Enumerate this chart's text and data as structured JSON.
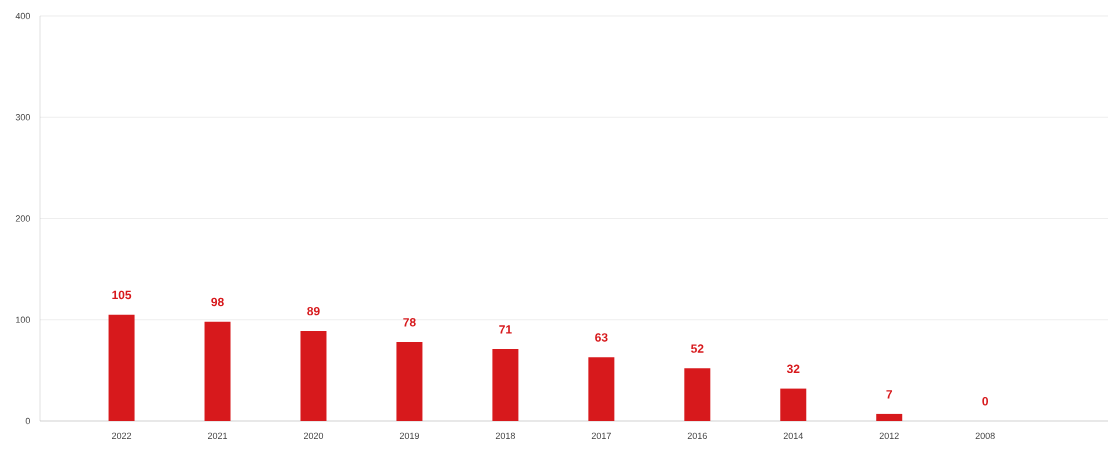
{
  "chart_data": {
    "type": "bar",
    "categories": [
      "2022",
      "2021",
      "2020",
      "2019",
      "2018",
      "2017",
      "2016",
      "2014",
      "2012",
      "2008"
    ],
    "values": [
      105,
      98,
      89,
      78,
      71,
      63,
      52,
      32,
      7,
      0
    ],
    "color": "#d7191c",
    "ylim": [
      0,
      400
    ],
    "yticks": [
      0,
      100,
      200,
      300,
      400
    ],
    "grid": "y",
    "data_labels": true
  }
}
